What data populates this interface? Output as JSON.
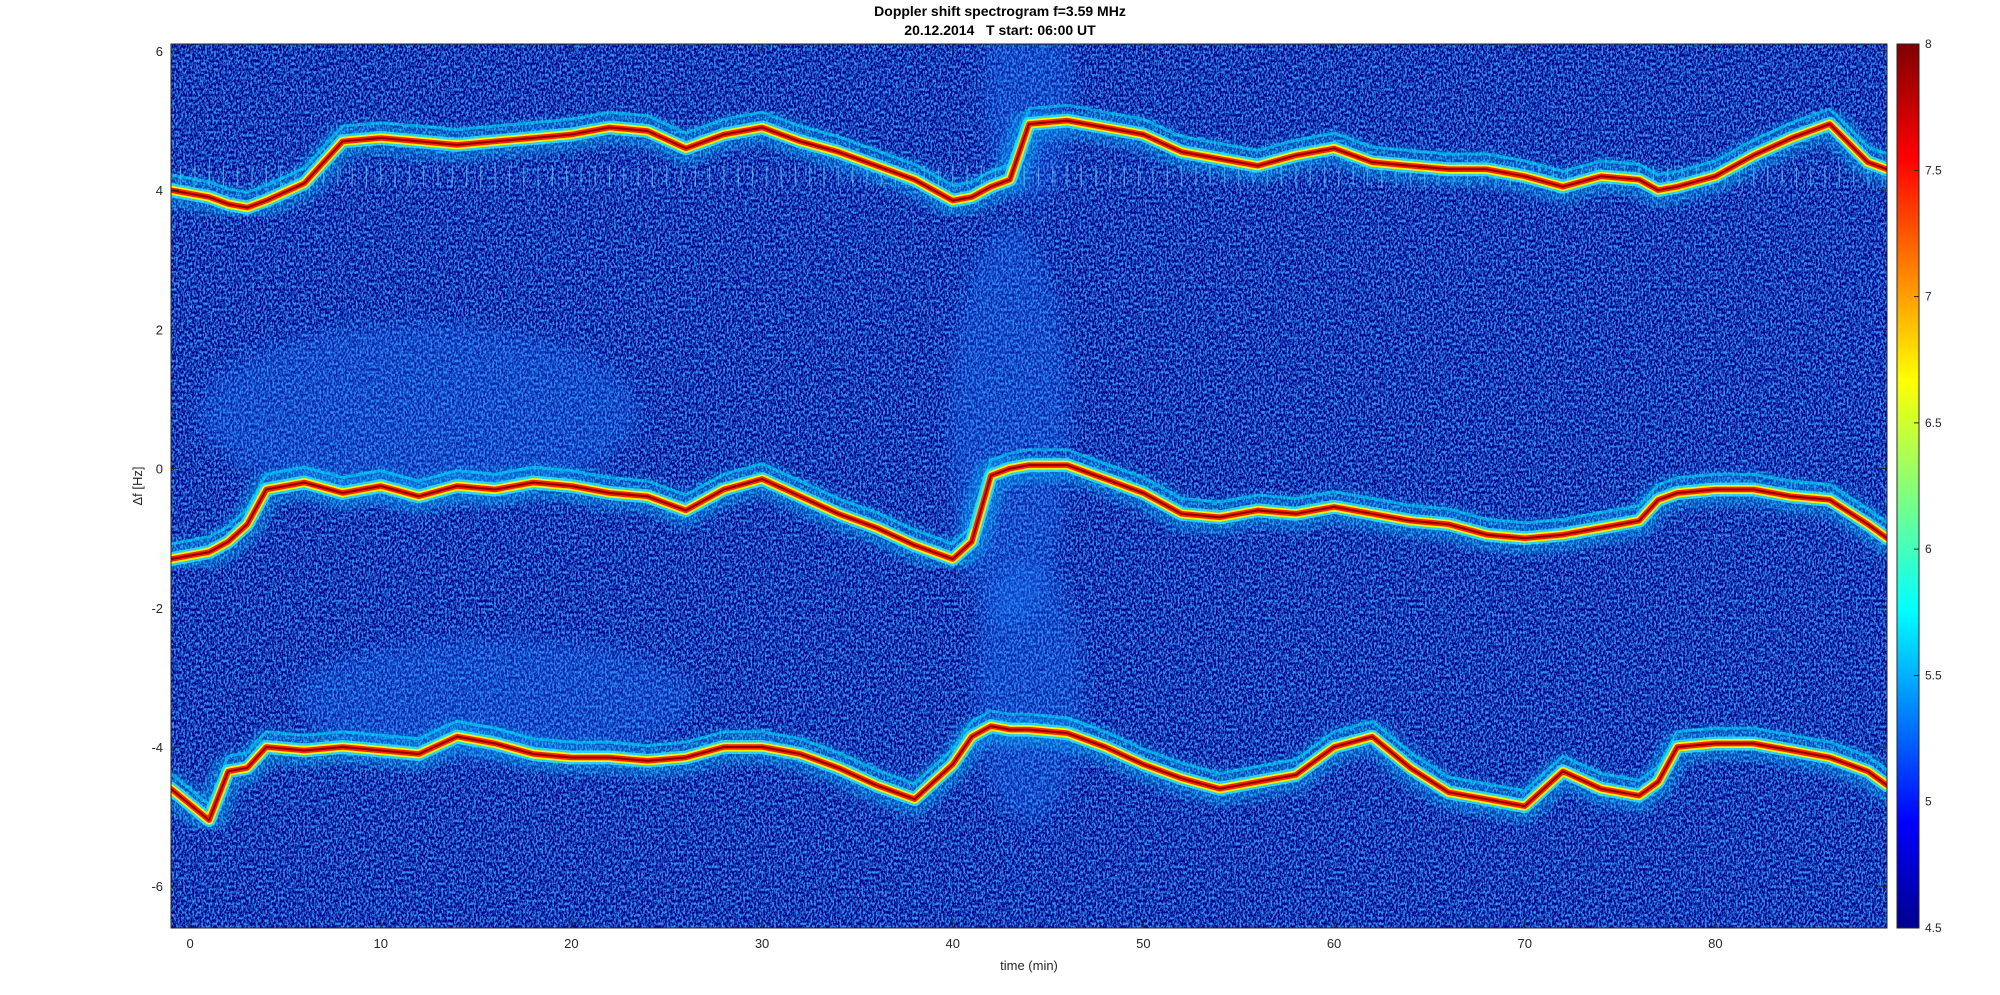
{
  "chart_data": {
    "type": "heatmap",
    "title": "Doppler shift spectrogram f=3.59 MHz",
    "subtitle": "20.12.2014   T start: 06:00 UT",
    "xlabel": "time (min)",
    "ylabel": "Δf [Hz]",
    "xlim": [
      -1,
      89
    ],
    "ylim": [
      -6.6,
      6.1
    ],
    "xticks": [
      0,
      10,
      20,
      30,
      40,
      50,
      60,
      70,
      80
    ],
    "yticks": [
      -6,
      -4,
      -2,
      0,
      2,
      4,
      6
    ],
    "colormap": "jet",
    "colorbar": {
      "range": [
        4.5,
        8
      ],
      "ticks": [
        "4.5",
        "5",
        "5.5",
        "6",
        "6.5",
        "7",
        "7.5",
        "8"
      ]
    },
    "series": [
      {
        "x": [
          -1,
          1,
          2,
          3,
          4,
          6,
          8,
          10,
          12,
          14,
          16,
          18,
          20,
          22,
          24,
          26,
          28,
          30,
          32,
          34,
          36,
          38,
          40,
          41,
          42,
          43,
          44,
          46,
          48,
          50,
          52,
          54,
          56,
          58,
          60,
          62,
          64,
          66,
          68,
          70,
          72,
          74,
          76,
          77,
          78,
          80,
          82,
          84,
          86,
          88,
          89
        ],
        "y": [
          4.0,
          3.9,
          3.8,
          3.75,
          3.85,
          4.1,
          4.7,
          4.75,
          4.7,
          4.65,
          4.7,
          4.75,
          4.8,
          4.9,
          4.85,
          4.6,
          4.8,
          4.9,
          4.7,
          4.55,
          4.35,
          4.15,
          3.85,
          3.9,
          4.05,
          4.15,
          4.95,
          5.0,
          4.9,
          4.8,
          4.55,
          4.45,
          4.35,
          4.5,
          4.6,
          4.4,
          4.35,
          4.3,
          4.3,
          4.2,
          4.05,
          4.2,
          4.15,
          4.0,
          4.05,
          4.2,
          4.5,
          4.75,
          4.95,
          4.4,
          4.3
        ]
      },
      {
        "x": [
          -1,
          1,
          2,
          3,
          4,
          6,
          8,
          10,
          12,
          14,
          16,
          18,
          20,
          22,
          24,
          26,
          28,
          30,
          32,
          34,
          36,
          38,
          40,
          41,
          42,
          43,
          44,
          46,
          48,
          50,
          52,
          54,
          56,
          58,
          60,
          62,
          64,
          66,
          68,
          70,
          72,
          74,
          76,
          77,
          78,
          80,
          82,
          84,
          86,
          88,
          89
        ],
        "y": [
          -1.3,
          -1.2,
          -1.05,
          -0.8,
          -0.3,
          -0.2,
          -0.35,
          -0.25,
          -0.4,
          -0.25,
          -0.3,
          -0.2,
          -0.25,
          -0.35,
          -0.4,
          -0.6,
          -0.3,
          -0.15,
          -0.4,
          -0.65,
          -0.85,
          -1.1,
          -1.3,
          -1.05,
          -0.1,
          0.0,
          0.05,
          0.05,
          -0.15,
          -0.35,
          -0.65,
          -0.7,
          -0.6,
          -0.65,
          -0.55,
          -0.65,
          -0.75,
          -0.8,
          -0.95,
          -1.0,
          -0.95,
          -0.85,
          -0.75,
          -0.45,
          -0.35,
          -0.3,
          -0.3,
          -0.4,
          -0.45,
          -0.8,
          -1.0
        ]
      },
      {
        "x": [
          -1,
          1,
          2,
          3,
          4,
          6,
          8,
          10,
          12,
          14,
          16,
          18,
          20,
          22,
          24,
          26,
          28,
          30,
          32,
          34,
          36,
          38,
          40,
          41,
          42,
          43,
          44,
          46,
          48,
          50,
          52,
          54,
          56,
          58,
          60,
          62,
          64,
          66,
          68,
          70,
          72,
          74,
          76,
          77,
          78,
          80,
          82,
          84,
          86,
          88,
          89
        ],
        "y": [
          -4.6,
          -5.05,
          -4.35,
          -4.3,
          -4.0,
          -4.05,
          -4.0,
          -4.05,
          -4.1,
          -3.85,
          -3.95,
          -4.1,
          -4.15,
          -4.15,
          -4.2,
          -4.15,
          -4.0,
          -4.0,
          -4.1,
          -4.3,
          -4.55,
          -4.75,
          -4.25,
          -3.85,
          -3.7,
          -3.75,
          -3.75,
          -3.8,
          -4.0,
          -4.25,
          -4.45,
          -4.6,
          -4.5,
          -4.4,
          -4.0,
          -3.85,
          -4.3,
          -4.65,
          -4.75,
          -4.85,
          -4.35,
          -4.6,
          -4.7,
          -4.5,
          -4.0,
          -3.95,
          -3.95,
          -4.05,
          -4.15,
          -4.35,
          -4.55
        ]
      }
    ]
  }
}
